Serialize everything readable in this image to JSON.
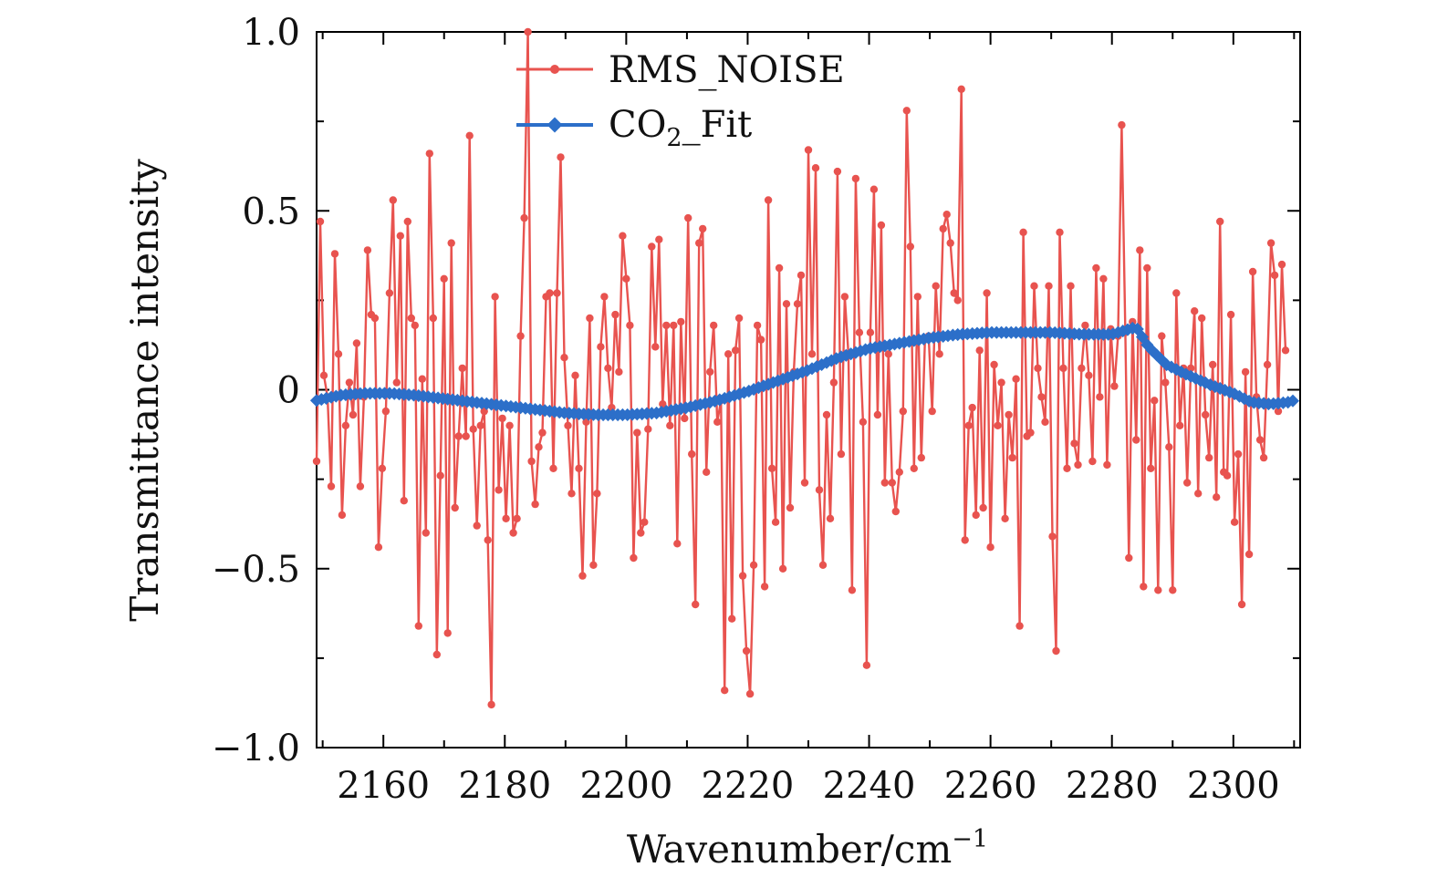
{
  "chart_data": {
    "type": "line",
    "xlabel": "Wavenumber/cm",
    "xlabel_sup": "−1",
    "ylabel": "Transmittance intensity",
    "xlim": [
      2149,
      2311
    ],
    "ylim": [
      -1.0,
      1.0
    ],
    "xticks": [
      2160,
      2180,
      2200,
      2220,
      2240,
      2260,
      2280,
      2300
    ],
    "yticks": [
      {
        "value": -1.0,
        "label": "−1.0"
      },
      {
        "value": -0.5,
        "label": "−0.5"
      },
      {
        "value": 0,
        "label": "0"
      },
      {
        "value": 0.5,
        "label": "0.5"
      },
      {
        "value": 1.0,
        "label": "1.0"
      }
    ],
    "legend_position": "top-center",
    "series": [
      {
        "name": "RMS_NOISE",
        "color": "#e8534f",
        "marker": "circle",
        "x_start": 2149,
        "x_step": 0.6,
        "values": [
          -0.2,
          0.47,
          0.04,
          -0.02,
          -0.27,
          0.38,
          0.1,
          -0.35,
          -0.1,
          0.02,
          -0.07,
          0.13,
          -0.27,
          -0.02,
          0.39,
          0.21,
          0.2,
          -0.44,
          -0.22,
          -0.06,
          0.27,
          0.53,
          0.02,
          0.43,
          -0.31,
          0.47,
          0.2,
          0.18,
          -0.66,
          0.03,
          -0.4,
          0.66,
          0.2,
          -0.74,
          -0.24,
          0.31,
          -0.68,
          0.41,
          -0.33,
          -0.13,
          0.06,
          -0.13,
          0.71,
          -0.11,
          -0.38,
          -0.1,
          -0.06,
          -0.42,
          -0.88,
          0.26,
          -0.28,
          -0.08,
          -0.36,
          -0.1,
          -0.4,
          -0.36,
          0.15,
          0.48,
          1.0,
          -0.2,
          -0.32,
          -0.16,
          -0.12,
          0.26,
          0.27,
          -0.22,
          0.27,
          0.65,
          0.09,
          -0.1,
          -0.29,
          0.04,
          -0.22,
          -0.52,
          -0.09,
          0.2,
          -0.49,
          -0.29,
          0.12,
          0.26,
          0.06,
          -0.05,
          0.21,
          0.05,
          0.43,
          0.31,
          0.18,
          -0.47,
          -0.12,
          -0.4,
          -0.37,
          -0.11,
          0.4,
          0.12,
          0.42,
          -0.04,
          0.18,
          -0.1,
          0.18,
          -0.43,
          0.19,
          -0.08,
          0.48,
          -0.18,
          -0.6,
          0.41,
          0.45,
          -0.23,
          0.05,
          0.18,
          -0.09,
          -0.03,
          -0.84,
          0.1,
          -0.64,
          0.11,
          0.2,
          -0.52,
          -0.73,
          -0.85,
          -0.49,
          0.18,
          0.14,
          -0.55,
          0.53,
          -0.22,
          -0.37,
          0.34,
          -0.5,
          0.24,
          -0.33,
          0.05,
          0.24,
          0.32,
          -0.26,
          0.67,
          0.1,
          0.62,
          -0.28,
          -0.49,
          -0.07,
          -0.36,
          0.02,
          0.61,
          -0.18,
          0.26,
          0.1,
          -0.56,
          0.59,
          0.16,
          -0.09,
          -0.77,
          0.16,
          0.56,
          -0.07,
          0.46,
          -0.26,
          0.1,
          -0.26,
          -0.34,
          -0.23,
          -0.06,
          0.78,
          0.4,
          -0.22,
          0.26,
          -0.19,
          0.14,
          0.15,
          -0.06,
          0.29,
          0.1,
          0.45,
          0.49,
          0.41,
          0.27,
          0.25,
          0.84,
          -0.42,
          -0.1,
          -0.05,
          -0.35,
          0.11,
          -0.33,
          0.27,
          -0.44,
          0.07,
          -0.1,
          0.02,
          -0.36,
          -0.07,
          -0.19,
          0.03,
          -0.66,
          0.44,
          -0.13,
          -0.12,
          0.29,
          0.06,
          -0.02,
          -0.09,
          0.29,
          -0.41,
          -0.73,
          0.44,
          0.06,
          -0.22,
          0.29,
          -0.15,
          -0.21,
          0.06,
          0.18,
          0.04,
          -0.2,
          0.34,
          -0.02,
          0.31,
          -0.21,
          0.17,
          0.01,
          0.15,
          0.74,
          0.16,
          -0.47,
          0.19,
          -0.14,
          0.39,
          -0.55,
          0.34,
          -0.22,
          -0.03,
          -0.56,
          0.15,
          0.02,
          -0.16,
          -0.56,
          0.27,
          -0.1,
          0.06,
          -0.26,
          0.06,
          0.22,
          -0.29,
          0.2,
          -0.07,
          -0.19,
          0.07,
          -0.3,
          0.47,
          -0.23,
          -0.24,
          0.21,
          -0.37,
          -0.18,
          -0.6,
          0.05,
          -0.46,
          0.33,
          -0.02,
          -0.14,
          -0.19,
          0.07,
          0.41,
          0.32,
          -0.06,
          0.35,
          0.11
        ]
      },
      {
        "name": "CO",
        "name_sub": "2",
        "name_suffix": "_Fit",
        "color": "#2c6fc9",
        "marker": "diamond",
        "x": [
          2149,
          2153,
          2157,
          2161,
          2165,
          2170,
          2175,
          2180,
          2185,
          2190,
          2195,
          2200,
          2205,
          2210,
          2215,
          2220,
          2225,
          2230,
          2235,
          2240,
          2245,
          2250,
          2255,
          2260,
          2265,
          2270,
          2275,
          2280,
          2284,
          2286,
          2289,
          2292,
          2296,
          2300,
          2303,
          2306,
          2309,
          2310
        ],
        "values": [
          -0.03,
          -0.015,
          -0.01,
          -0.01,
          -0.015,
          -0.025,
          -0.035,
          -0.045,
          -0.055,
          -0.065,
          -0.07,
          -0.07,
          -0.065,
          -0.05,
          -0.03,
          -0.005,
          0.025,
          0.055,
          0.09,
          0.115,
          0.13,
          0.145,
          0.155,
          0.16,
          0.16,
          0.16,
          0.155,
          0.155,
          0.175,
          0.12,
          0.07,
          0.045,
          0.015,
          -0.01,
          -0.035,
          -0.04,
          -0.035,
          -0.03
        ]
      }
    ]
  }
}
